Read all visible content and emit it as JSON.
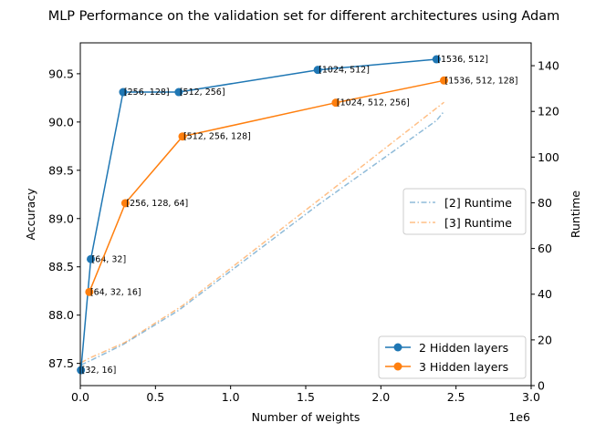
{
  "chart_data": {
    "type": "line",
    "title": "MLP Performance on the validation set for different architectures using Adam",
    "xlabel": "Number of weights",
    "x_offset_label": "1e6",
    "ylabel_left": "Accuracy",
    "ylabel_right": "Runtime",
    "xlim": [
      0,
      3000000
    ],
    "ylim_left": [
      87.27,
      90.82
    ],
    "ylim_right": [
      0,
      150
    ],
    "x_ticks": [
      0,
      500000,
      1000000,
      1500000,
      2000000,
      2500000,
      3000000
    ],
    "x_tick_labels": [
      "0.0",
      "0.5",
      "1.0",
      "1.5",
      "2.0",
      "2.5",
      "3.0"
    ],
    "y_ticks_left": [
      87.5,
      88.0,
      88.5,
      89.0,
      89.5,
      90.0,
      90.5
    ],
    "y_tick_labels_left": [
      "87.5",
      "88.0",
      "88.5",
      "89.0",
      "89.5",
      "90.0",
      "90.5"
    ],
    "y_ticks_right": [
      0,
      20,
      40,
      60,
      80,
      100,
      120,
      140
    ],
    "y_tick_labels_right": [
      "0",
      "20",
      "40",
      "60",
      "80",
      "100",
      "120",
      "140"
    ],
    "grid": false,
    "legends": [
      {
        "position": "center-right",
        "entries": [
          "[2] Runtime",
          "[3] Runtime"
        ]
      },
      {
        "position": "lower-right",
        "entries": [
          "2 Hidden layers",
          "3 Hidden layers"
        ]
      }
    ],
    "series": [
      {
        "name": "2 Hidden layers",
        "axis": "left",
        "style": "solid-marker",
        "color": "#1f77b4",
        "x": [
          4000,
          70000,
          285000,
          655000,
          1580000,
          2370000
        ],
        "y": [
          87.43,
          88.58,
          90.31,
          90.31,
          90.54,
          90.65
        ],
        "point_labels": [
          "[32, 16]",
          "[64, 32]",
          "[256, 128]",
          "[512, 256]",
          "[1024, 512]",
          "[1536, 512]"
        ]
      },
      {
        "name": "3 Hidden layers",
        "axis": "left",
        "style": "solid-marker",
        "color": "#ff7f0e",
        "x": [
          60000,
          300000,
          680000,
          1700000,
          2420000
        ],
        "y": [
          88.24,
          89.16,
          89.85,
          90.2,
          90.43
        ],
        "point_labels": [
          "[64, 32, 16]",
          "[256, 128, 64]",
          "[512, 256, 128]",
          "[1024, 512, 256]",
          "[1536, 512, 128]"
        ]
      },
      {
        "name": "[2] Runtime",
        "axis": "right",
        "style": "dashdot",
        "color": "#1f77b4",
        "opacity": 0.5,
        "x": [
          4000,
          70000,
          285000,
          655000,
          1580000,
          2370000,
          2420000
        ],
        "y": [
          9,
          11,
          18,
          33,
          79,
          116,
          120
        ]
      },
      {
        "name": "[3] Runtime",
        "axis": "right",
        "style": "dashdot",
        "color": "#ff7f0e",
        "opacity": 0.5,
        "x": [
          4000,
          60000,
          300000,
          680000,
          1700000,
          2420000
        ],
        "y": [
          10,
          12,
          19,
          35,
          87,
          124
        ]
      }
    ]
  }
}
